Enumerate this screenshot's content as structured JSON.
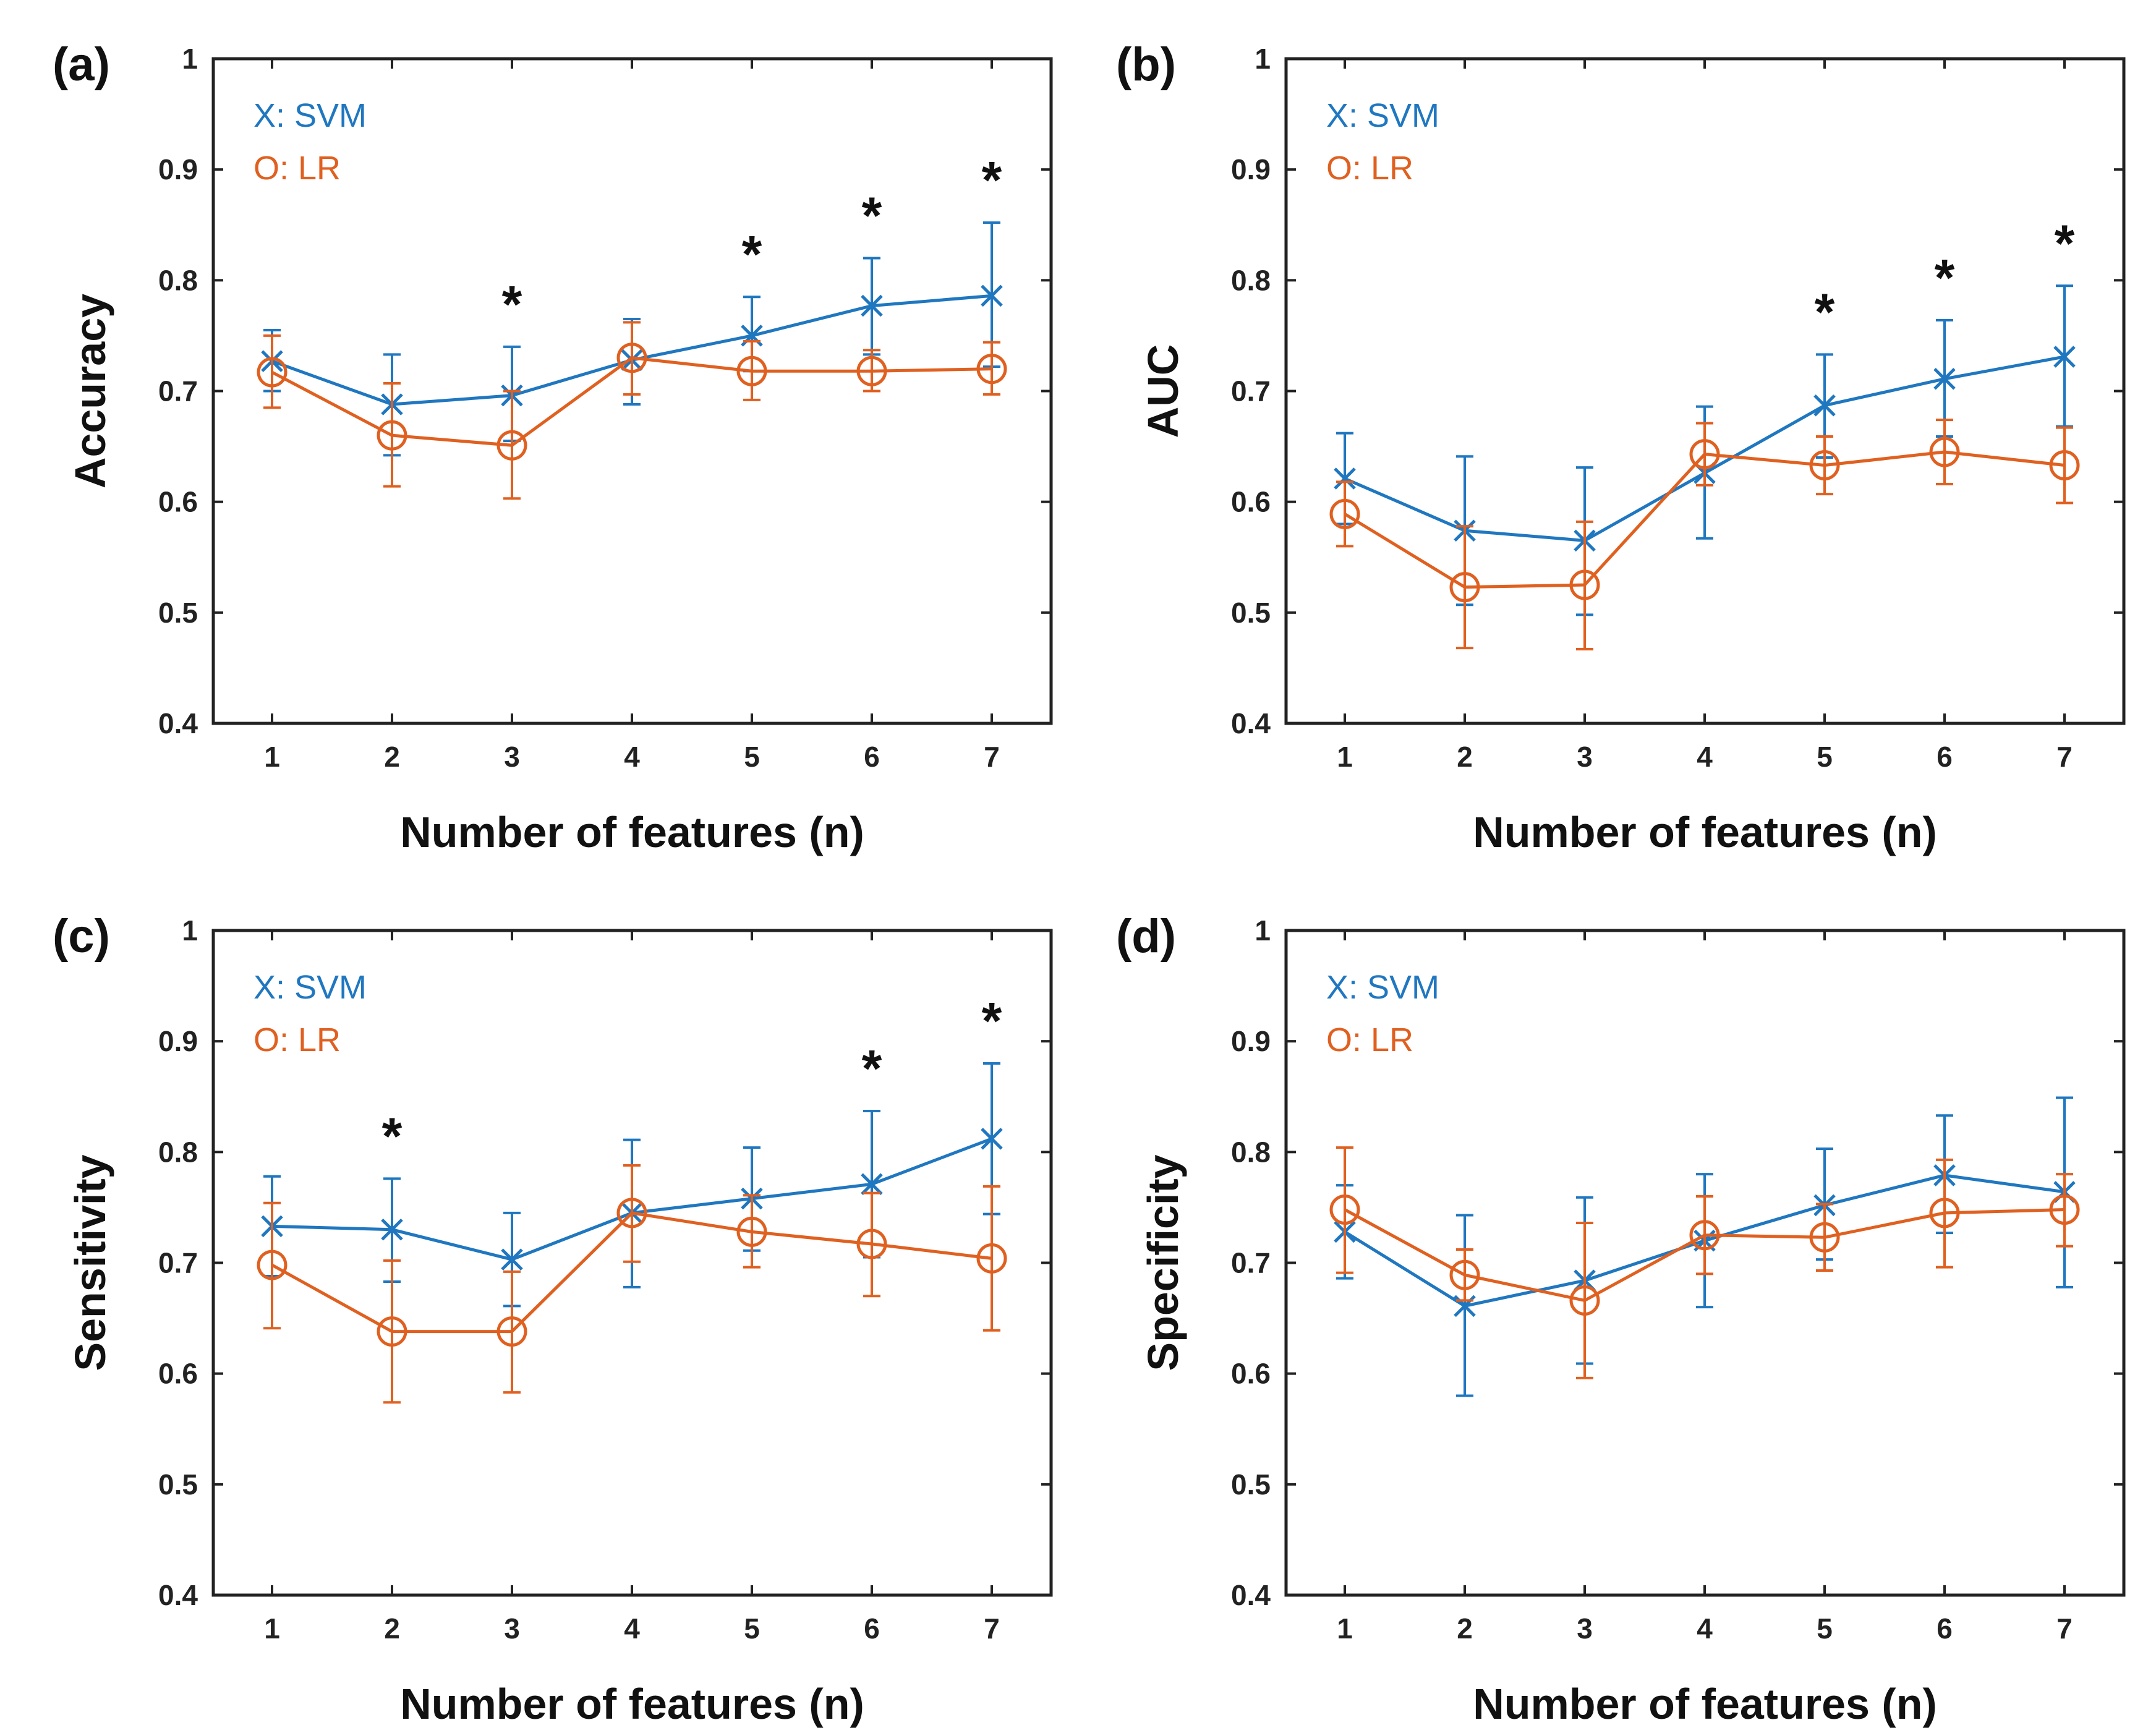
{
  "colors": {
    "svm": "#1f77c0",
    "lr": "#e06020",
    "axis": "#222222"
  },
  "chart_data": [
    {
      "type": "line",
      "panel_label": "(a)",
      "xlabel": "Number of features (n)",
      "ylabel": "Accuracy",
      "ylim": [
        0.4,
        1
      ],
      "yticks": [
        "0.4",
        "0.5",
        "0.6",
        "0.7",
        "0.8",
        "0.9",
        "1"
      ],
      "x": [
        1,
        2,
        3,
        4,
        5,
        6,
        7
      ],
      "xtick_labels": [
        "1",
        "2",
        "3",
        "4",
        "5",
        "6",
        "7"
      ],
      "legend": [
        "X: SVM",
        "O: LR"
      ],
      "series": [
        {
          "name": "SVM",
          "marker": "x",
          "values": [
            0.727,
            0.688,
            0.696,
            0.728,
            0.75,
            0.777,
            0.786
          ],
          "err_low": [
            0.7,
            0.642,
            0.655,
            0.688,
            0.718,
            0.733,
            0.722
          ],
          "err_high": [
            0.755,
            0.733,
            0.74,
            0.765,
            0.785,
            0.82,
            0.852
          ]
        },
        {
          "name": "LR",
          "marker": "o",
          "values": [
            0.717,
            0.66,
            0.651,
            0.73,
            0.718,
            0.718,
            0.72
          ],
          "err_low": [
            0.685,
            0.614,
            0.603,
            0.697,
            0.692,
            0.7,
            0.697
          ],
          "err_high": [
            0.75,
            0.707,
            0.7,
            0.762,
            0.745,
            0.737,
            0.744
          ]
        }
      ],
      "significance": {
        "symbol": "*",
        "x": [
          3,
          5,
          6,
          7
        ]
      }
    },
    {
      "type": "line",
      "panel_label": "(b)",
      "xlabel": "Number of features (n)",
      "ylabel": "AUC",
      "ylim": [
        0.4,
        1
      ],
      "yticks": [
        "0.4",
        "0.5",
        "0.6",
        "0.7",
        "0.8",
        "0.9",
        "1"
      ],
      "x": [
        1,
        2,
        3,
        4,
        5,
        6,
        7
      ],
      "xtick_labels": [
        "1",
        "2",
        "3",
        "4",
        "5",
        "6",
        "7"
      ],
      "legend": [
        "X: SVM",
        "O: LR"
      ],
      "series": [
        {
          "name": "SVM",
          "marker": "x",
          "values": [
            0.621,
            0.574,
            0.565,
            0.626,
            0.687,
            0.711,
            0.731
          ],
          "err_low": [
            0.58,
            0.507,
            0.498,
            0.567,
            0.64,
            0.659,
            0.668
          ],
          "err_high": [
            0.662,
            0.641,
            0.631,
            0.686,
            0.733,
            0.764,
            0.795
          ]
        },
        {
          "name": "LR",
          "marker": "o",
          "values": [
            0.589,
            0.523,
            0.525,
            0.643,
            0.633,
            0.645,
            0.633
          ],
          "err_low": [
            0.56,
            0.468,
            0.467,
            0.615,
            0.607,
            0.616,
            0.599
          ],
          "err_high": [
            0.618,
            0.578,
            0.582,
            0.671,
            0.659,
            0.674,
            0.667
          ]
        }
      ],
      "significance": {
        "symbol": "*",
        "x": [
          5,
          6,
          7
        ]
      }
    },
    {
      "type": "line",
      "panel_label": "(c)",
      "xlabel": "Number of features (n)",
      "ylabel": "Sensitivity",
      "ylim": [
        0.4,
        1
      ],
      "yticks": [
        "0.4",
        "0.5",
        "0.6",
        "0.7",
        "0.8",
        "0.9",
        "1"
      ],
      "x": [
        1,
        2,
        3,
        4,
        5,
        6,
        7
      ],
      "xtick_labels": [
        "1",
        "2",
        "3",
        "4",
        "5",
        "6",
        "7"
      ],
      "legend": [
        "X: SVM",
        "O: LR"
      ],
      "series": [
        {
          "name": "SVM",
          "marker": "x",
          "values": [
            0.733,
            0.73,
            0.703,
            0.745,
            0.758,
            0.771,
            0.812
          ],
          "err_low": [
            0.688,
            0.683,
            0.661,
            0.678,
            0.711,
            0.705,
            0.744
          ],
          "err_high": [
            0.778,
            0.776,
            0.745,
            0.811,
            0.804,
            0.837,
            0.88
          ]
        },
        {
          "name": "LR",
          "marker": "o",
          "values": [
            0.698,
            0.638,
            0.638,
            0.745,
            0.728,
            0.717,
            0.704
          ],
          "err_low": [
            0.641,
            0.574,
            0.583,
            0.701,
            0.696,
            0.67,
            0.639
          ],
          "err_high": [
            0.754,
            0.702,
            0.692,
            0.788,
            0.761,
            0.763,
            0.769
          ]
        }
      ],
      "significance": {
        "symbol": "*",
        "x": [
          2,
          6,
          7
        ]
      }
    },
    {
      "type": "line",
      "panel_label": "(d)",
      "xlabel": "Number of features (n)",
      "ylabel": "Specificity",
      "ylim": [
        0.4,
        1
      ],
      "yticks": [
        "0.4",
        "0.5",
        "0.6",
        "0.7",
        "0.8",
        "0.9",
        "1"
      ],
      "x": [
        1,
        2,
        3,
        4,
        5,
        6,
        7
      ],
      "xtick_labels": [
        "1",
        "2",
        "3",
        "4",
        "5",
        "6",
        "7"
      ],
      "legend": [
        "X: SVM",
        "O: LR"
      ],
      "series": [
        {
          "name": "SVM",
          "marker": "x",
          "values": [
            0.728,
            0.661,
            0.684,
            0.72,
            0.752,
            0.779,
            0.764
          ],
          "err_low": [
            0.686,
            0.58,
            0.609,
            0.66,
            0.703,
            0.727,
            0.678
          ],
          "err_high": [
            0.77,
            0.743,
            0.759,
            0.78,
            0.803,
            0.833,
            0.849
          ]
        },
        {
          "name": "LR",
          "marker": "o",
          "values": [
            0.748,
            0.689,
            0.666,
            0.725,
            0.723,
            0.745,
            0.748
          ],
          "err_low": [
            0.691,
            0.666,
            0.596,
            0.69,
            0.693,
            0.696,
            0.715
          ],
          "err_high": [
            0.804,
            0.712,
            0.736,
            0.76,
            0.753,
            0.793,
            0.78
          ]
        }
      ],
      "significance": {
        "symbol": "*",
        "x": []
      }
    }
  ]
}
